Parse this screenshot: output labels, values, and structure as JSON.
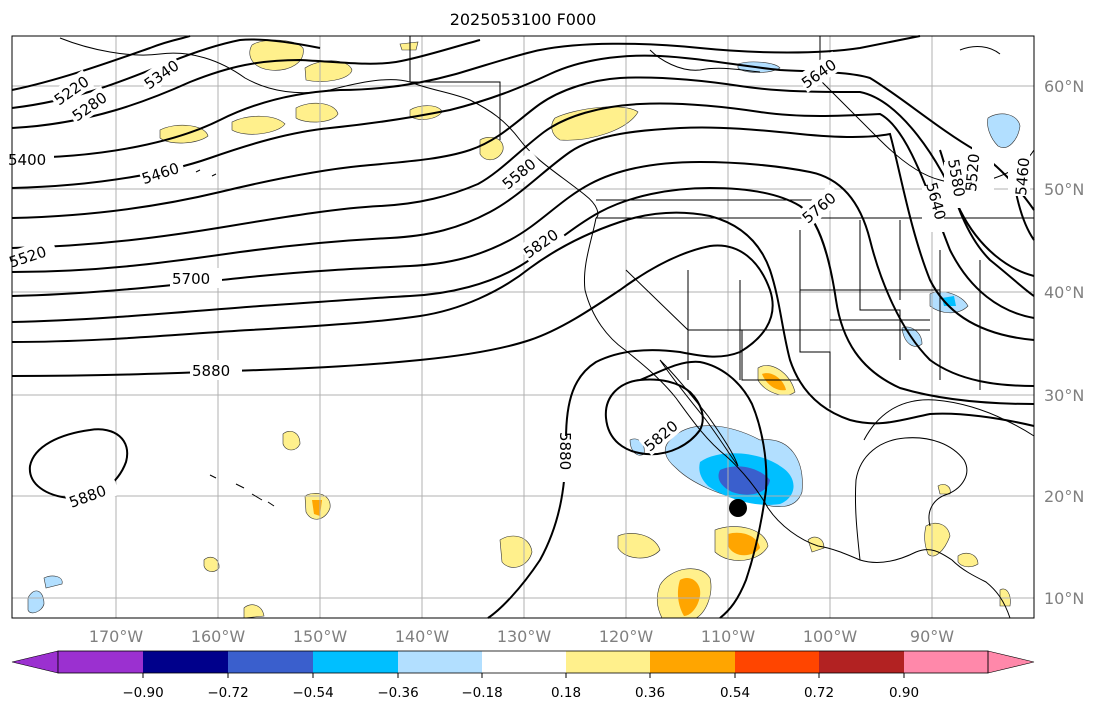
{
  "title": "2025053100 F000",
  "map": {
    "lon_labels": [
      "170°W",
      "160°W",
      "150°W",
      "140°W",
      "130°W",
      "120°W",
      "110°W",
      "100°W",
      "90°W"
    ],
    "lat_labels": [
      "60°N",
      "50°N",
      "40°N",
      "30°N",
      "20°N",
      "10°N"
    ],
    "contour_labels": [
      "5220",
      "5280",
      "5340",
      "5400",
      "5460",
      "5520",
      "5580",
      "5640",
      "5700",
      "5760",
      "5820",
      "5880"
    ],
    "marker": "black-dot"
  },
  "colorbar": {
    "ticks": [
      "−0.90",
      "−0.72",
      "−0.54",
      "−0.36",
      "−0.18",
      "0.18",
      "0.36",
      "0.54",
      "0.72",
      "0.90"
    ],
    "colors": [
      "#9b30d0",
      "#00008b",
      "#3a5fcd",
      "#00bfff",
      "#b2dfff",
      "#ffffff",
      "#fff08c",
      "#ffa500",
      "#ff4500",
      "#b22222",
      "#ff88aa"
    ]
  }
}
